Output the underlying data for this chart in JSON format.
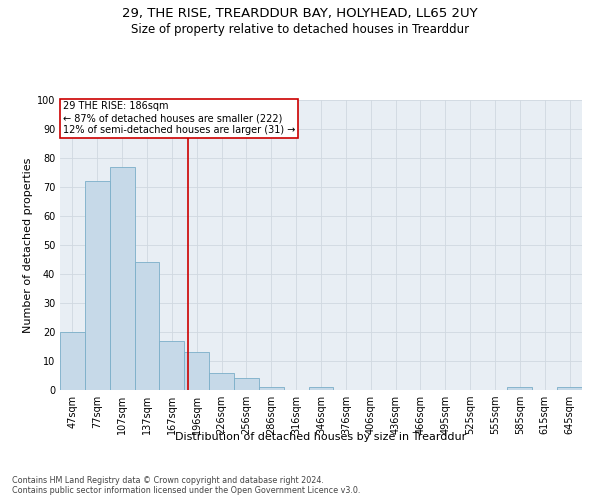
{
  "title": "29, THE RISE, TREARDDUR BAY, HOLYHEAD, LL65 2UY",
  "subtitle": "Size of property relative to detached houses in Trearddur",
  "xlabel": "Distribution of detached houses by size in Trearddur",
  "ylabel": "Number of detached properties",
  "bin_labels": [
    "47sqm",
    "77sqm",
    "107sqm",
    "137sqm",
    "167sqm",
    "196sqm",
    "226sqm",
    "256sqm",
    "286sqm",
    "316sqm",
    "346sqm",
    "376sqm",
    "406sqm",
    "436sqm",
    "466sqm",
    "495sqm",
    "525sqm",
    "555sqm",
    "585sqm",
    "615sqm",
    "645sqm"
  ],
  "bar_values": [
    20,
    72,
    77,
    44,
    17,
    13,
    6,
    4,
    1,
    0,
    1,
    0,
    0,
    0,
    0,
    0,
    0,
    0,
    1,
    0,
    1
  ],
  "bar_color": "#c6d9e8",
  "bar_edgecolor": "#7aaec8",
  "annotation_text": "29 THE RISE: 186sqm\n← 87% of detached houses are smaller (222)\n12% of semi-detached houses are larger (31) →",
  "annotation_box_color": "#ffffff",
  "annotation_box_edgecolor": "#cc0000",
  "vline_color": "#cc0000",
  "ylim": [
    0,
    100
  ],
  "yticks": [
    0,
    10,
    20,
    30,
    40,
    50,
    60,
    70,
    80,
    90,
    100
  ],
  "title_fontsize": 9.5,
  "subtitle_fontsize": 8.5,
  "axis_label_fontsize": 8,
  "tick_fontsize": 7,
  "annotation_fontsize": 7,
  "footer_line1": "Contains HM Land Registry data © Crown copyright and database right 2024.",
  "footer_line2": "Contains public sector information licensed under the Open Government Licence v3.0.",
  "grid_color": "#d0d8e0",
  "background_color": "#e8eef4"
}
